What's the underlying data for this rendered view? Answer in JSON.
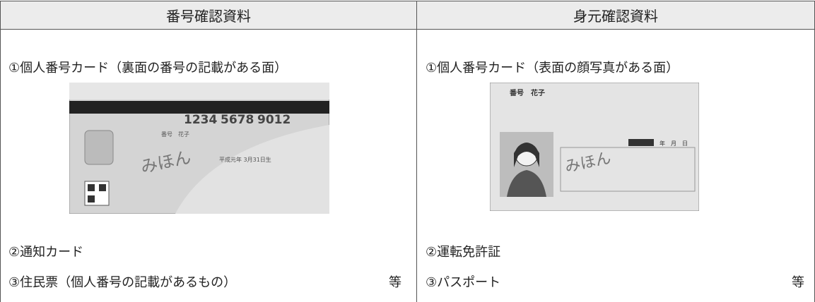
{
  "table": {
    "headers": [
      "番号確認資料",
      "身元確認資料"
    ],
    "columns": [
      {
        "items": [
          "①個人番号カード（裏面の番号の記載がある面）",
          "②通知カード",
          "③住民票（個人番号の記載があるもの）"
        ],
        "suffix": "等",
        "card": {
          "number": [
            "1234",
            "5678",
            "9012"
          ],
          "name": "番号　花子",
          "sample": "みほん",
          "birth": "平成元年 3月31日生"
        }
      },
      {
        "items": [
          "①個人番号カード（表面の顔写真がある面）",
          "②運転免許証",
          "③パスポート"
        ],
        "suffix": "等",
        "card": {
          "name": "番号　花子",
          "sample": "みほん",
          "date": "年　月　日"
        }
      }
    ]
  }
}
